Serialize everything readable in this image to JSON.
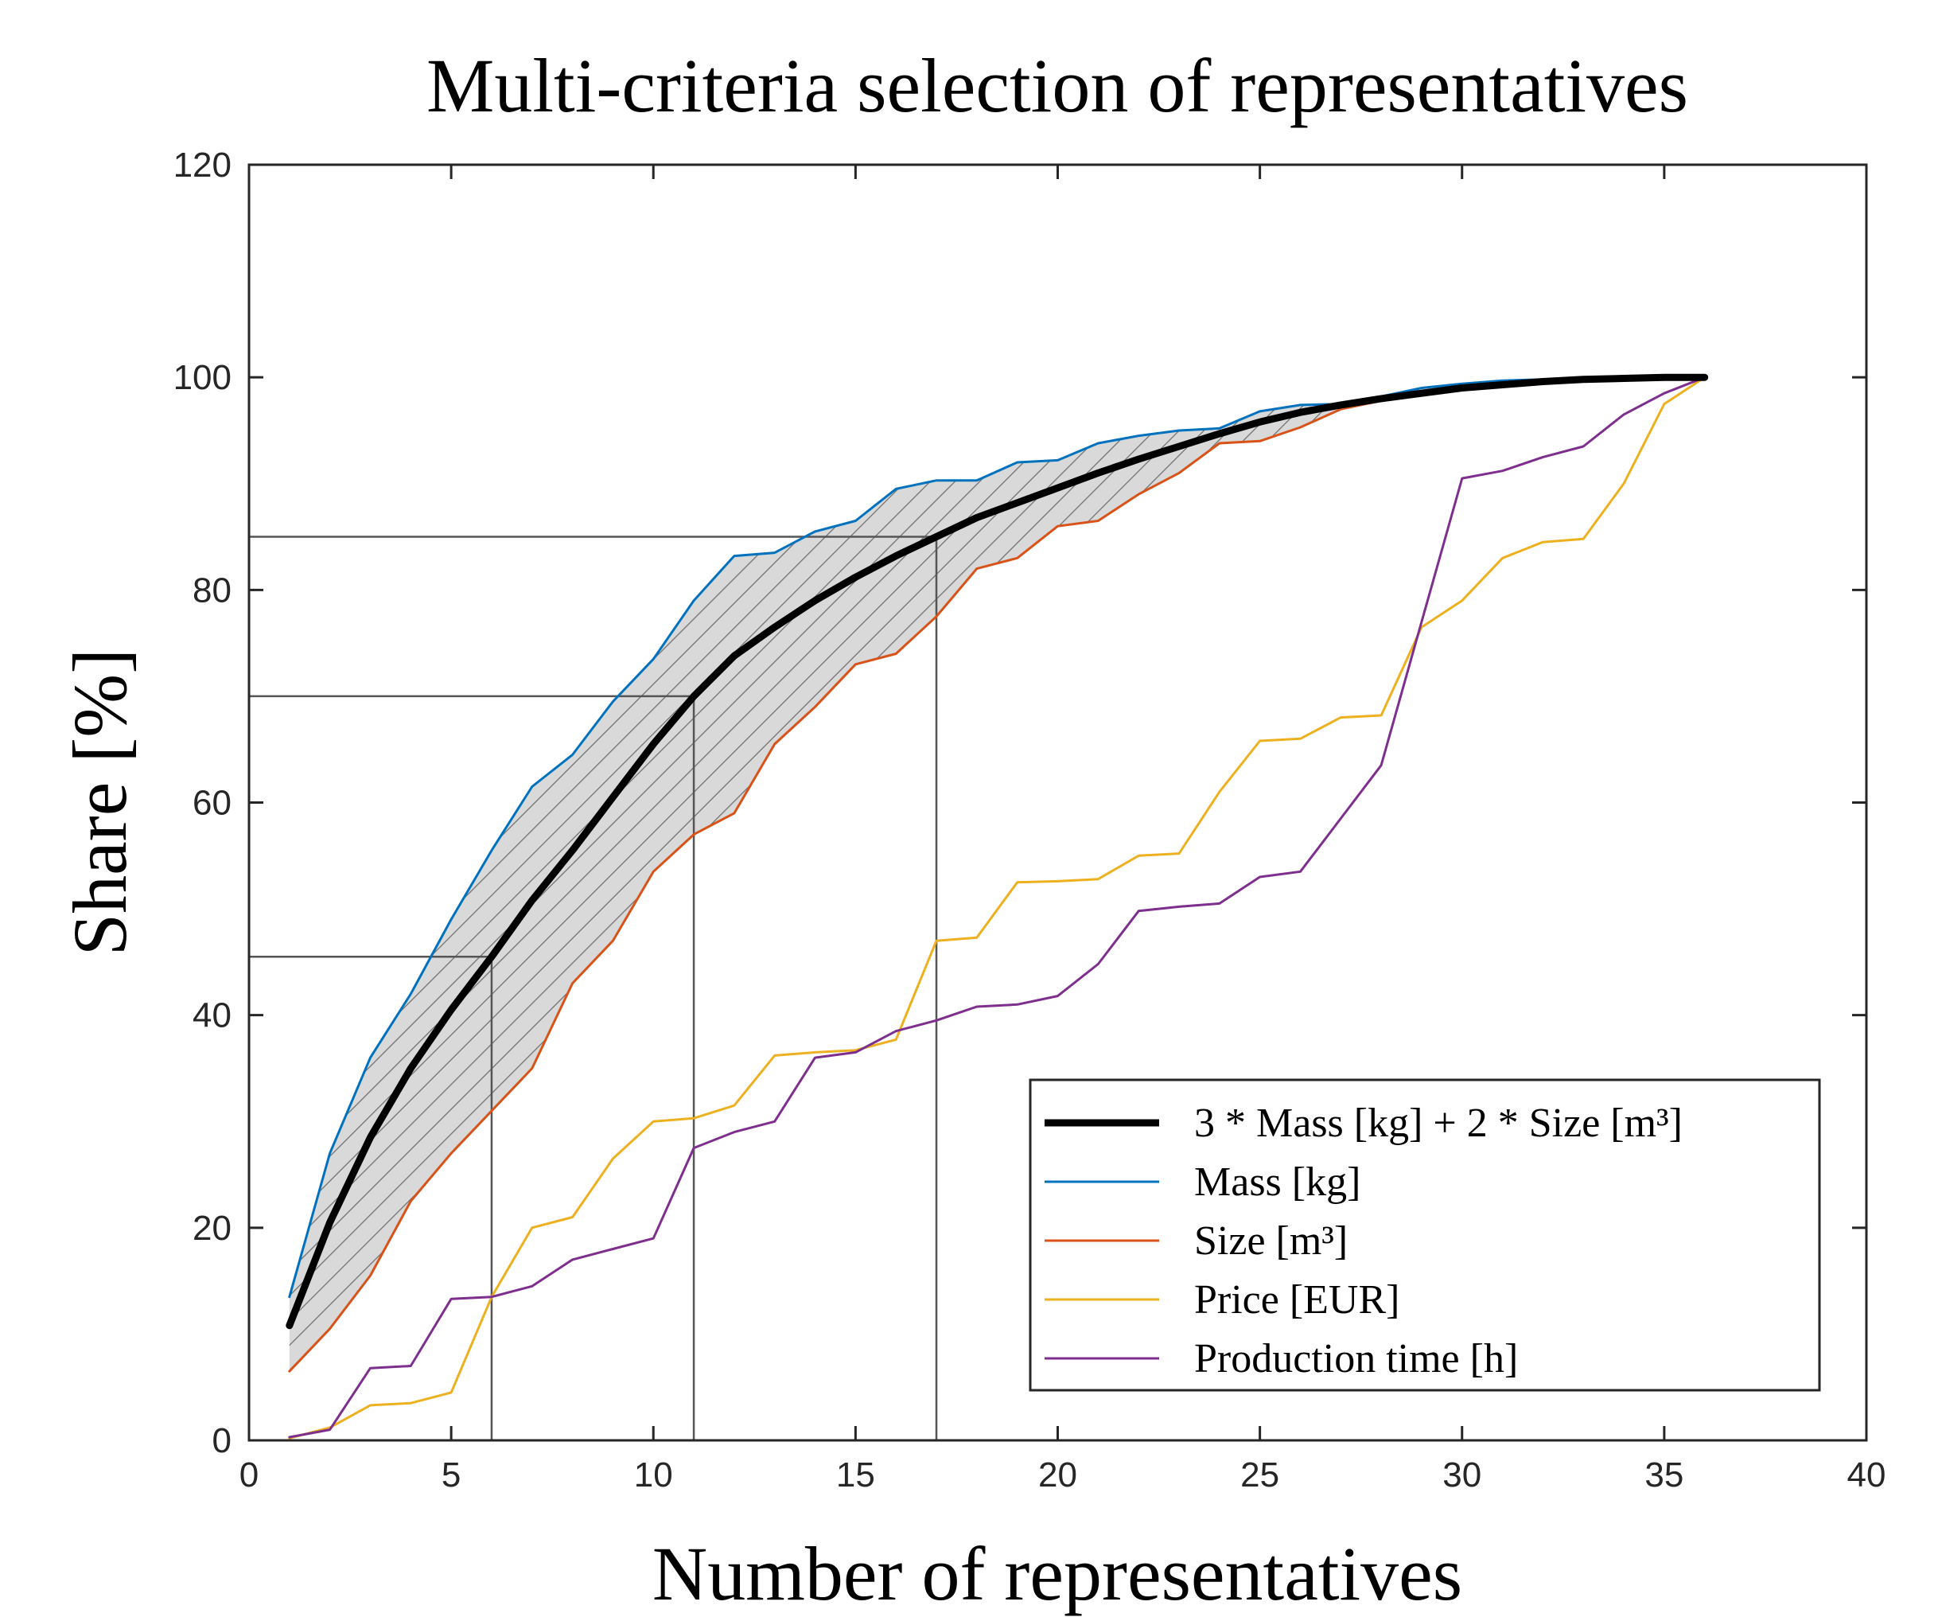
{
  "chart_data": {
    "type": "line",
    "title": "Multi-criteria selection of representatives",
    "xlabel": "Number of representatives",
    "ylabel": "Share [%]",
    "xlim": [
      0,
      40
    ],
    "ylim": [
      0,
      120
    ],
    "xticks": [
      0,
      5,
      10,
      15,
      20,
      25,
      30,
      35,
      40
    ],
    "yticks": [
      0,
      20,
      40,
      60,
      80,
      100,
      120
    ],
    "legend_position": "bottom-right",
    "x": [
      1,
      2,
      3,
      4,
      5,
      6,
      7,
      8,
      9,
      10,
      11,
      12,
      13,
      14,
      15,
      16,
      17,
      18,
      19,
      20,
      21,
      22,
      23,
      24,
      25,
      26,
      27,
      28,
      29,
      30,
      31,
      32,
      33,
      34,
      35,
      36
    ],
    "series": [
      {
        "name": "3 * Mass [kg] + 2 * Size [m³]",
        "color": "#000000",
        "width": 9,
        "values": [
          10.8,
          20.5,
          28.5,
          35.0,
          40.5,
          45.5,
          50.8,
          55.5,
          60.5,
          65.5,
          70.0,
          73.8,
          76.5,
          79.0,
          81.2,
          83.2,
          85.0,
          86.8,
          88.2,
          89.6,
          91.0,
          92.3,
          93.5,
          94.7,
          95.8,
          96.7,
          97.4,
          98.0,
          98.5,
          99.0,
          99.3,
          99.6,
          99.8,
          99.9,
          100.0,
          100.0
        ]
      },
      {
        "name": "Mass [kg]",
        "color": "#0072BD",
        "width": 3,
        "values": [
          13.5,
          27.0,
          36.0,
          42.0,
          49.0,
          55.5,
          61.5,
          64.5,
          69.5,
          73.5,
          79.0,
          83.2,
          83.5,
          85.5,
          86.5,
          89.5,
          90.3,
          90.3,
          92.0,
          92.2,
          93.8,
          94.5,
          95.0,
          95.2,
          96.8,
          97.4,
          97.5,
          98.2,
          99.0,
          99.4,
          99.7,
          99.8,
          99.9,
          100.0,
          100.0,
          100.0
        ]
      },
      {
        "name": "Size [m³]",
        "color": "#D95319",
        "width": 3,
        "values": [
          6.5,
          10.5,
          15.5,
          22.5,
          27.0,
          31.0,
          35.0,
          43.0,
          47.0,
          53.5,
          57.0,
          59.0,
          65.5,
          69.0,
          73.0,
          74.0,
          77.5,
          82.0,
          83.0,
          86.0,
          86.5,
          89.0,
          91.0,
          93.8,
          94.0,
          95.3,
          97.0,
          97.8,
          98.3,
          98.8,
          99.2,
          99.5,
          99.7,
          99.9,
          100.0,
          100.0
        ]
      },
      {
        "name": "Price [EUR]",
        "color": "#EDB120",
        "width": 3,
        "values": [
          0.2,
          1.2,
          3.3,
          3.5,
          4.5,
          13.5,
          20.0,
          21.0,
          26.5,
          30.0,
          30.3,
          31.5,
          36.2,
          36.5,
          36.7,
          37.7,
          47.0,
          47.3,
          52.5,
          52.6,
          52.8,
          55.0,
          55.2,
          61.0,
          65.8,
          66.0,
          68.0,
          68.2,
          76.5,
          79.0,
          83.0,
          84.5,
          84.8,
          90.0,
          97.5,
          100.0
        ]
      },
      {
        "name": "Production time [h]",
        "color": "#7E2F8E",
        "width": 3,
        "values": [
          0.3,
          1.0,
          6.8,
          7.0,
          13.3,
          13.5,
          14.5,
          17.0,
          18.0,
          19.0,
          27.5,
          29.0,
          30.0,
          36.0,
          36.5,
          38.5,
          39.5,
          40.8,
          41.0,
          41.8,
          44.8,
          49.8,
          50.2,
          50.5,
          53.0,
          53.5,
          58.5,
          63.5,
          77.0,
          90.5,
          91.2,
          92.5,
          93.5,
          96.5,
          98.5,
          100.0
        ]
      }
    ],
    "band": {
      "between": [
        "Mass [kg]",
        "Size [m³]"
      ],
      "fill": "#d9d9d9",
      "hatch": "#555555"
    },
    "reference_lines": [
      {
        "x": 6,
        "y": 45.5
      },
      {
        "x": 11,
        "y": 70.0
      },
      {
        "x": 17,
        "y": 85.0
      }
    ]
  }
}
